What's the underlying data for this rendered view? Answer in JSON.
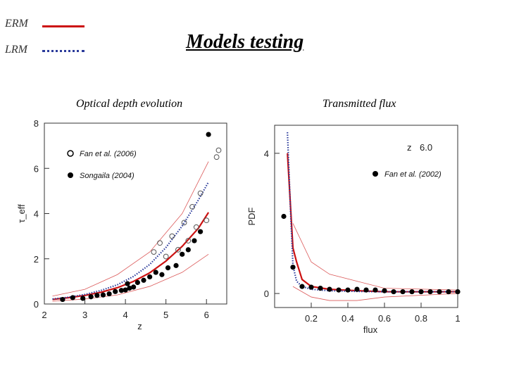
{
  "header": {
    "title": "Models testing",
    "legend": [
      {
        "label": "ERM",
        "color": "#cc1111",
        "style": "solid"
      },
      {
        "label": "LRM",
        "color": "#2a3a9a",
        "style": "dotted"
      }
    ]
  },
  "chart_data": [
    {
      "type": "scatter",
      "title": "Optical depth evolution",
      "xlabel": "z",
      "ylabel": "τ_eff",
      "xlim": [
        2,
        6.5
      ],
      "ylim": [
        0,
        8
      ],
      "xticks": [
        2,
        3,
        4,
        5,
        6
      ],
      "yticks": [
        0,
        2,
        4,
        6,
        8
      ],
      "grid": false,
      "legend_position": "top-left",
      "legend": [
        {
          "name": "Fan et al. (2006)",
          "marker": "open-circle"
        },
        {
          "name": "Songaila (2004)",
          "marker": "filled-circle"
        }
      ],
      "series": [
        {
          "name": "ERM",
          "kind": "line",
          "color": "#cc1111",
          "x": [
            2.2,
            2.6,
            3.0,
            3.4,
            3.8,
            4.2,
            4.6,
            5.0,
            5.4,
            5.8,
            6.05
          ],
          "y": [
            0.2,
            0.28,
            0.38,
            0.52,
            0.72,
            1.0,
            1.38,
            1.9,
            2.55,
            3.35,
            4.05
          ]
        },
        {
          "name": "LRM",
          "kind": "line",
          "color": "#2a3a9a",
          "x": [
            2.2,
            2.6,
            3.0,
            3.4,
            3.8,
            4.2,
            4.6,
            5.0,
            5.4,
            5.8,
            6.05
          ],
          "y": [
            0.22,
            0.3,
            0.42,
            0.6,
            0.85,
            1.22,
            1.75,
            2.5,
            3.45,
            4.6,
            5.4
          ]
        },
        {
          "name": "Songaila (2004)",
          "kind": "points-filled",
          "x": [
            2.45,
            2.7,
            2.95,
            3.15,
            3.3,
            3.45,
            3.6,
            3.75,
            3.9,
            4.0,
            4.05,
            4.1,
            4.2,
            4.3,
            4.45,
            4.6,
            4.75,
            4.9,
            5.05,
            5.25,
            5.4,
            5.55,
            5.7,
            5.85,
            6.05
          ],
          "y": [
            0.2,
            0.28,
            0.25,
            0.32,
            0.38,
            0.4,
            0.45,
            0.55,
            0.6,
            0.62,
            0.9,
            0.7,
            0.75,
            0.95,
            1.05,
            1.2,
            1.4,
            1.3,
            1.6,
            1.7,
            2.2,
            2.4,
            2.8,
            3.2,
            7.5
          ]
        },
        {
          "name": "Fan et al. (2006)",
          "kind": "points-open",
          "x": [
            4.7,
            4.85,
            5.0,
            5.15,
            5.3,
            5.45,
            5.55,
            5.65,
            5.75,
            5.85,
            6.0,
            6.25,
            6.3
          ],
          "y": [
            2.3,
            2.7,
            2.1,
            3.0,
            2.4,
            3.6,
            2.8,
            4.3,
            3.4,
            4.9,
            3.7,
            6.5,
            6.8
          ]
        }
      ],
      "bands": [
        {
          "color": "#cc1111",
          "x": [
            2.2,
            3.0,
            3.8,
            4.6,
            5.4,
            6.05
          ],
          "upper": [
            0.35,
            0.65,
            1.3,
            2.3,
            4.0,
            6.3
          ],
          "lower": [
            0.12,
            0.22,
            0.4,
            0.78,
            1.4,
            2.2
          ]
        }
      ]
    },
    {
      "type": "line",
      "title": "Transmitted flux",
      "xlabel": "flux",
      "ylabel": "PDF",
      "xlim": [
        0,
        1
      ],
      "ylim": [
        -0.4,
        4.8
      ],
      "xticks": [
        0.2,
        0.4,
        0.6,
        0.8,
        1
      ],
      "xticklabels": [
        "0.2",
        "0.4",
        "0.6",
        "0.8",
        "1"
      ],
      "yticks": [
        0,
        4
      ],
      "annotations": [
        "z",
        "6.0"
      ],
      "grid": false,
      "legend_position": "right",
      "legend": [
        {
          "name": "Fan et al. (2002)",
          "marker": "filled-circle"
        }
      ],
      "series": [
        {
          "name": "ERM",
          "kind": "line",
          "color": "#cc1111",
          "x": [
            0.07,
            0.1,
            0.12,
            0.15,
            0.2,
            0.3,
            0.45,
            0.6,
            0.8,
            1.0
          ],
          "y": [
            4.0,
            1.3,
            0.9,
            0.4,
            0.2,
            0.12,
            0.08,
            0.05,
            0.05,
            0.05
          ]
        },
        {
          "name": "LRM",
          "kind": "line",
          "color": "#2a3a9a",
          "x": [
            0.07,
            0.085,
            0.1,
            0.12,
            0.15,
            0.2,
            0.3,
            0.45,
            0.6,
            0.8,
            1.0
          ],
          "y": [
            4.6,
            2.6,
            0.8,
            0.35,
            0.2,
            0.12,
            0.08,
            0.06,
            0.05,
            0.05,
            0.05
          ]
        },
        {
          "name": "Fan et al. (2002)",
          "kind": "points-filled",
          "x": [
            0.05,
            0.1,
            0.15,
            0.2,
            0.25,
            0.3,
            0.35,
            0.4,
            0.45,
            0.5,
            0.55,
            0.6,
            0.65,
            0.7,
            0.75,
            0.8,
            0.85,
            0.9,
            0.95,
            1.0
          ],
          "y": [
            2.2,
            0.75,
            0.2,
            0.18,
            0.15,
            0.12,
            0.1,
            0.1,
            0.12,
            0.1,
            0.1,
            0.08,
            0.05,
            0.05,
            0.05,
            0.05,
            0.05,
            0.05,
            0.05,
            0.05
          ]
        }
      ],
      "bands": [
        {
          "color": "#cc1111",
          "x": [
            0.1,
            0.2,
            0.3,
            0.45,
            0.6,
            1.0
          ],
          "upper": [
            2.0,
            0.9,
            0.55,
            0.35,
            0.15,
            0.1
          ],
          "lower": [
            0.2,
            -0.1,
            -0.2,
            -0.2,
            -0.1,
            0.0
          ]
        }
      ]
    }
  ]
}
